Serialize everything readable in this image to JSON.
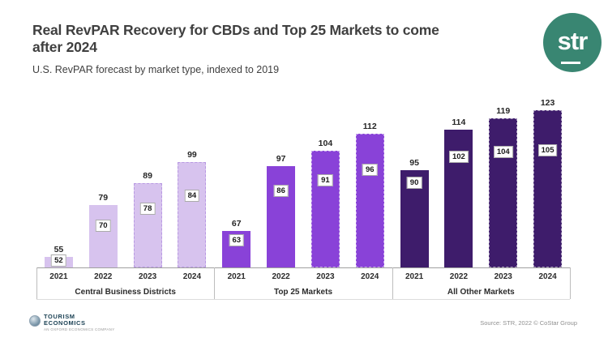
{
  "header": {
    "title_lines": [
      "Real RevPAR Recovery for CBDs and Top 25 Markets to come",
      "after 2024"
    ],
    "subtitle": "U.S. RevPAR forecast by market type, indexed to 2019"
  },
  "str_logo": {
    "text": "str",
    "color": "#398672"
  },
  "chart_data": {
    "type": "bar",
    "title": "Real RevPAR Recovery for CBDs and Top 25 Markets to come after 2024",
    "subtitle": "U.S. RevPAR forecast by market type, indexed to 2019",
    "years": [
      "2021",
      "2022",
      "2023",
      "2024"
    ],
    "forecast_years": [
      "2023",
      "2024"
    ],
    "axis": {
      "y_min": 50,
      "y_max_shown": 123,
      "gridlines": false,
      "value_labels": "outside-end and boxed inside bar"
    },
    "groups": [
      {
        "label": "Central Business Districts",
        "color": "#d7c3ee",
        "dash_color": "#b899e2",
        "bar_values": [
          55,
          79,
          89,
          99
        ],
        "boxed_values": [
          52,
          70,
          78,
          84
        ]
      },
      {
        "label": "Top 25 Markets",
        "color": "#8942d8",
        "dash_color": "rgba(255,255,255,0.55)",
        "bar_values": [
          67,
          97,
          104,
          112
        ],
        "boxed_values": [
          63,
          86,
          91,
          96
        ]
      },
      {
        "label": "All Other Markets",
        "color": "#3e1c6b",
        "dash_color": "rgba(255,255,255,0.55)",
        "bar_values": [
          95,
          114,
          119,
          123
        ],
        "boxed_values": [
          90,
          102,
          104,
          105
        ]
      }
    ]
  },
  "footer": {
    "logo": {
      "line1": "TOURISM",
      "line2": "ECONOMICS",
      "tagline": "AN OXFORD ECONOMICS COMPANY"
    },
    "source": "Source: STR, 2022 © CoStar Group"
  }
}
